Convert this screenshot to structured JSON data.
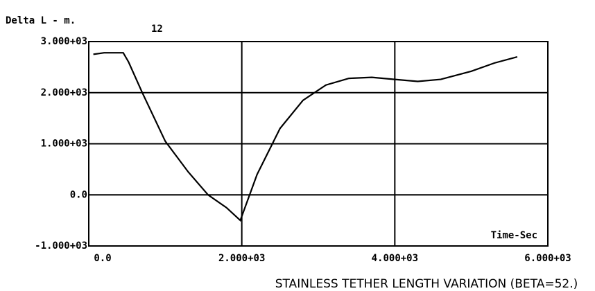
{
  "chart_data": {
    "type": "line",
    "ylabel": "Delta L - m.",
    "annotation": "12",
    "xlabel": "Time-Sec",
    "title": "STAINLESS TETHER LENGTH VARIATION (BETA=52.)",
    "x": [
      60,
      200,
      450,
      520,
      700,
      1000,
      1300,
      1560,
      1800,
      1980,
      2200,
      2500,
      2800,
      3100,
      3400,
      3700,
      4000,
      4300,
      4600,
      5000,
      5300,
      5600
    ],
    "series": [
      {
        "name": "Delta L",
        "color": "#000000",
        "values": [
          2750,
          2780,
          2780,
          2600,
          2000,
          1050,
          450,
          0,
          -250,
          -500,
          400,
          1300,
          1850,
          2150,
          2280,
          2300,
          2260,
          2220,
          2260,
          2420,
          2580,
          2700
        ]
      }
    ],
    "xlim": [
      0,
      6000
    ],
    "xticks": [
      {
        "value": 0,
        "label": "0.0"
      },
      {
        "value": 2000,
        "label": "2.000+03"
      },
      {
        "value": 4000,
        "label": "4.000+03"
      },
      {
        "value": 6000,
        "label": "6.000+03"
      }
    ],
    "ylim": [
      -1000,
      3000
    ],
    "yticks": [
      {
        "value": -1000,
        "label": "-1.000+03"
      },
      {
        "value": 0,
        "label": "0.0"
      },
      {
        "value": 1000,
        "label": "1.000+03"
      },
      {
        "value": 2000,
        "label": "2.000+03"
      },
      {
        "value": 3000,
        "label": "3.000+03"
      }
    ],
    "grid": true
  }
}
